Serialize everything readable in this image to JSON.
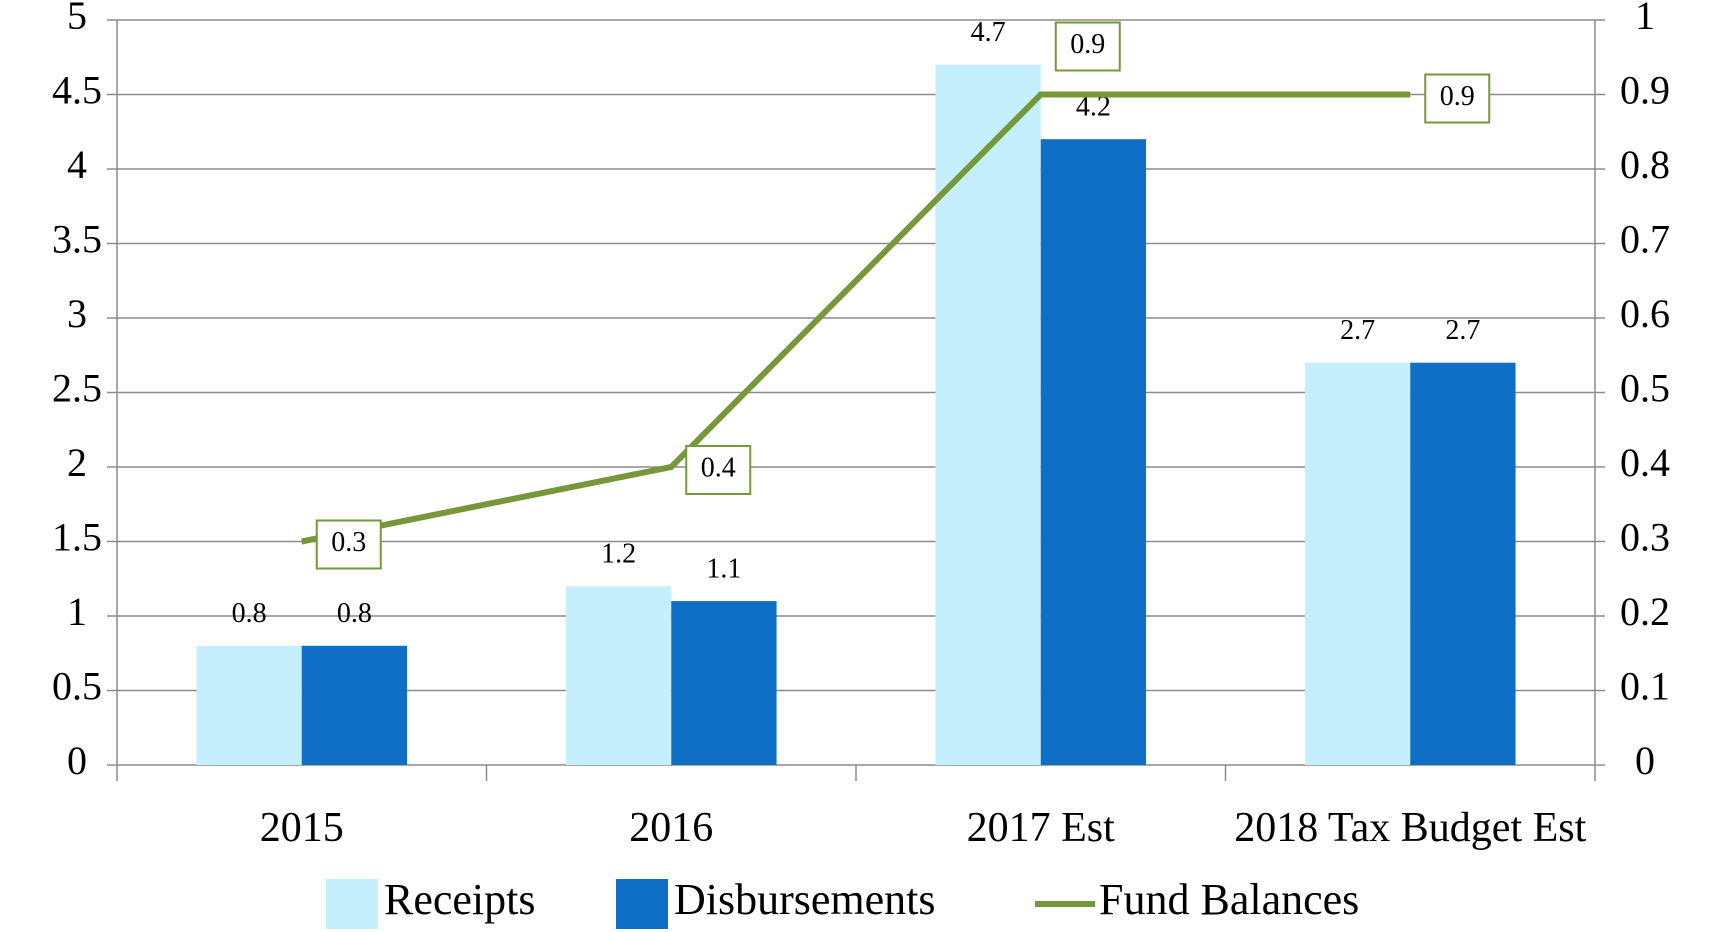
{
  "chart_data": {
    "type": "bar",
    "categories": [
      "2015",
      "2016",
      "2017 Est",
      "2018 Tax Budget Est"
    ],
    "series": [
      {
        "name": "Receipts",
        "color": "#c5effd",
        "values": [
          0.8,
          1.2,
          4.7,
          2.7
        ]
      },
      {
        "name": "Disbursements",
        "color": "#0f6fc6",
        "values": [
          0.8,
          1.1,
          4.2,
          2.7
        ]
      },
      {
        "name": "Fund Balances",
        "color": "#77983a",
        "type": "line",
        "axis": "y2",
        "values": [
          0.3,
          0.4,
          0.9,
          0.9
        ]
      }
    ],
    "ylim": [
      0,
      5
    ],
    "yticks": [
      0,
      0.5,
      1,
      1.5,
      2,
      2.5,
      3,
      3.5,
      4,
      4.5,
      5
    ],
    "y2lim": [
      0,
      1
    ],
    "y2ticks": [
      0,
      0.1,
      0.2,
      0.3,
      0.4,
      0.5,
      0.6,
      0.7,
      0.8,
      0.9,
      1
    ],
    "grid": true,
    "legend": "bottom"
  }
}
